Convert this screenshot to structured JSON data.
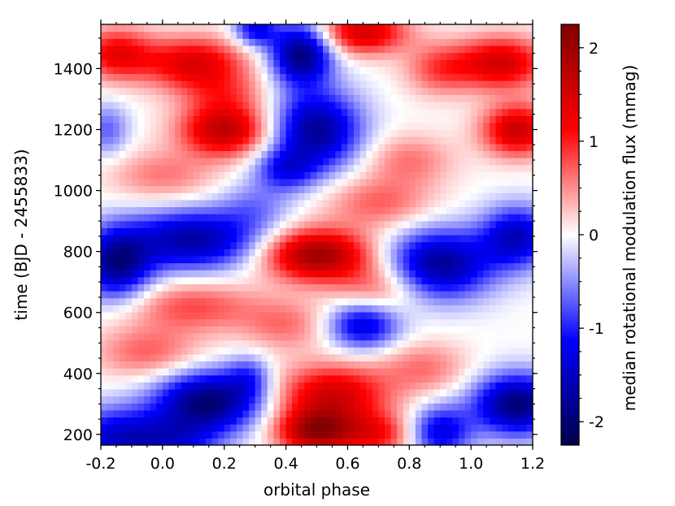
{
  "chart_data": {
    "type": "heatmap",
    "title": "",
    "xlabel": "orbital phase",
    "ylabel": "time (BJD - 2455833)",
    "colorbar_label": "median rotational modulation flux (mmag)",
    "xlim": [
      -0.2,
      1.2
    ],
    "ylim": [
      165,
      1545
    ],
    "x_ticks": [
      -0.2,
      0.0,
      0.2,
      0.4,
      0.6,
      0.8,
      1.0,
      1.2
    ],
    "x_tick_labels": [
      "-0.2",
      "0.0",
      "0.2",
      "0.4",
      "0.6",
      "0.8",
      "1.0",
      "1.2"
    ],
    "y_ticks": [
      200,
      400,
      600,
      800,
      1000,
      1200,
      1400
    ],
    "y_tick_labels": [
      "200",
      "400",
      "600",
      "800",
      "1000",
      "1200",
      "1400"
    ],
    "colorbar_range": [
      -2.25,
      2.25
    ],
    "colorbar_ticks": [
      -2,
      -1,
      0,
      1,
      2
    ],
    "colorbar_tick_labels": [
      "-2",
      "-1",
      "0",
      "1",
      "2"
    ],
    "colormap": "seismic",
    "colormap_stops": [
      "#00004c",
      "#0000ff",
      "#ffffff",
      "#ff0000",
      "#800000"
    ],
    "grid": false,
    "features": [
      {
        "phase": -0.15,
        "time": 190,
        "value": -1.4,
        "sx": 0.12,
        "sy": 70
      },
      {
        "phase": 0.05,
        "time": 175,
        "value": -0.9,
        "sx": 0.1,
        "sy": 60
      },
      {
        "phase": 0.15,
        "time": 310,
        "value": -2.0,
        "sx": 0.12,
        "sy": 70
      },
      {
        "phase": 0.28,
        "time": 390,
        "value": -0.7,
        "sx": 0.05,
        "sy": 50
      },
      {
        "phase": 0.5,
        "time": 210,
        "value": 1.9,
        "sx": 0.09,
        "sy": 50
      },
      {
        "phase": 0.55,
        "time": 330,
        "value": 1.5,
        "sx": 0.13,
        "sy": 70
      },
      {
        "phase": 0.7,
        "time": 200,
        "value": 1.0,
        "sx": 0.08,
        "sy": 50
      },
      {
        "phase": 0.9,
        "time": 210,
        "value": -1.3,
        "sx": 0.07,
        "sy": 60
      },
      {
        "phase": 1.15,
        "time": 300,
        "value": -2.0,
        "sx": 0.1,
        "sy": 70
      },
      {
        "phase": -0.05,
        "time": 470,
        "value": 0.7,
        "sx": 0.12,
        "sy": 60
      },
      {
        "phase": 0.85,
        "time": 420,
        "value": 0.6,
        "sx": 0.1,
        "sy": 60
      },
      {
        "phase": 0.65,
        "time": 560,
        "value": -1.4,
        "sx": 0.08,
        "sy": 55
      },
      {
        "phase": 0.4,
        "time": 560,
        "value": 0.6,
        "sx": 0.1,
        "sy": 60
      },
      {
        "phase": 0.1,
        "time": 620,
        "value": 0.8,
        "sx": 0.15,
        "sy": 60
      },
      {
        "phase": -0.15,
        "time": 760,
        "value": -1.8,
        "sx": 0.08,
        "sy": 80
      },
      {
        "phase": 0.1,
        "time": 840,
        "value": -1.7,
        "sx": 0.15,
        "sy": 70
      },
      {
        "phase": 0.5,
        "time": 790,
        "value": 2.0,
        "sx": 0.12,
        "sy": 60
      },
      {
        "phase": 0.9,
        "time": 760,
        "value": -1.8,
        "sx": 0.12,
        "sy": 80
      },
      {
        "phase": 1.15,
        "time": 850,
        "value": -1.5,
        "sx": 0.08,
        "sy": 70
      },
      {
        "phase": 0.7,
        "time": 680,
        "value": 0.7,
        "sx": 0.1,
        "sy": 60
      },
      {
        "phase": 0.3,
        "time": 950,
        "value": -0.5,
        "sx": 0.08,
        "sy": 60
      },
      {
        "phase": 0.7,
        "time": 960,
        "value": 0.7,
        "sx": 0.12,
        "sy": 60
      },
      {
        "phase": 0.0,
        "time": 1050,
        "value": 0.6,
        "sx": 0.12,
        "sy": 60
      },
      {
        "phase": 0.2,
        "time": 1200,
        "value": 1.7,
        "sx": 0.1,
        "sy": 60
      },
      {
        "phase": 0.5,
        "time": 1200,
        "value": -1.8,
        "sx": 0.1,
        "sy": 90
      },
      {
        "phase": -0.18,
        "time": 1200,
        "value": -0.7,
        "sx": 0.05,
        "sy": 60
      },
      {
        "phase": 1.15,
        "time": 1200,
        "value": 1.6,
        "sx": 0.08,
        "sy": 60
      },
      {
        "phase": 0.4,
        "time": 1070,
        "value": -1.0,
        "sx": 0.07,
        "sy": 50
      },
      {
        "phase": 0.8,
        "time": 1100,
        "value": 0.6,
        "sx": 0.1,
        "sy": 60
      },
      {
        "phase": 0.45,
        "time": 1450,
        "value": -2.0,
        "sx": 0.07,
        "sy": 70
      },
      {
        "phase": 0.3,
        "time": 1530,
        "value": -1.2,
        "sx": 0.05,
        "sy": 40
      },
      {
        "phase": 0.1,
        "time": 1420,
        "value": 1.4,
        "sx": 0.12,
        "sy": 60
      },
      {
        "phase": -0.15,
        "time": 1450,
        "value": 1.2,
        "sx": 0.08,
        "sy": 60
      },
      {
        "phase": 0.65,
        "time": 1520,
        "value": 1.5,
        "sx": 0.1,
        "sy": 50
      },
      {
        "phase": 1.1,
        "time": 1420,
        "value": 1.5,
        "sx": 0.1,
        "sy": 60
      },
      {
        "phase": 0.9,
        "time": 1400,
        "value": 0.8,
        "sx": 0.08,
        "sy": 60
      },
      {
        "phase": 0.2,
        "time": 1320,
        "value": 0.6,
        "sx": 0.1,
        "sy": 50
      }
    ]
  }
}
